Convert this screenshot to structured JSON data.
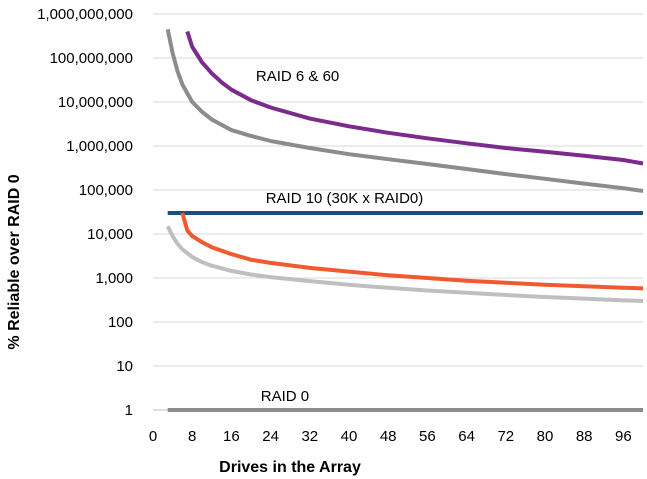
{
  "chart_data": {
    "type": "line",
    "title": "",
    "xlabel": "Drives in the Array",
    "ylabel": "% Reliable over RAID 0",
    "xlim": [
      0,
      100
    ],
    "ylim": [
      1,
      1000000000
    ],
    "yscale": "log",
    "grid": "horizontal",
    "legend": "none",
    "x_ticks": [
      "0",
      "8",
      "16",
      "24",
      "32",
      "40",
      "48",
      "56",
      "64",
      "72",
      "80",
      "88",
      "96"
    ],
    "y_ticks": [
      "1",
      "10",
      "100",
      "1,000",
      "10,000",
      "100,000",
      "1,000,000",
      "10,000,000",
      "100,000,000",
      "1,000,000,000"
    ],
    "annotations": [
      {
        "text": "RAID 6 & 60",
        "x": 21,
        "y": 30000000
      },
      {
        "text": "RAID 10 (30K x RAID0)",
        "x": 23,
        "y": 50000
      },
      {
        "text": "RAID 0",
        "x": 22,
        "y": 1.6
      }
    ],
    "series": [
      {
        "color": "#7b2a8e",
        "x": [
          7,
          8,
          9,
          10,
          12,
          14,
          16,
          20,
          24,
          32,
          40,
          48,
          56,
          64,
          72,
          80,
          88,
          96,
          100
        ],
        "y": [
          400000000,
          180000000,
          120000000,
          80000000,
          45000000,
          28000000,
          19000000,
          11000000,
          7500000,
          4200000,
          2800000,
          2000000,
          1500000,
          1150000,
          900000,
          740000,
          600000,
          480000,
          400000
        ]
      },
      {
        "color": "#8c8c8c",
        "x": [
          3,
          4,
          5,
          6,
          8,
          10,
          12,
          16,
          20,
          24,
          32,
          40,
          48,
          56,
          64,
          72,
          80,
          88,
          96,
          100
        ],
        "y": [
          450000000,
          130000000,
          50000000,
          25000000,
          10000000,
          6000000,
          4000000,
          2300000,
          1700000,
          1300000,
          900000,
          650000,
          500000,
          390000,
          300000,
          230000,
          180000,
          140000,
          110000,
          95000
        ]
      },
      {
        "color": "#1f4e79",
        "x": [
          3,
          100
        ],
        "y": [
          30000,
          30000
        ]
      },
      {
        "color": "#f05a30",
        "x": [
          6,
          7,
          8,
          10,
          12,
          16,
          20,
          24,
          32,
          40,
          48,
          56,
          64,
          72,
          80,
          88,
          96,
          100
        ],
        "y": [
          30000,
          12000,
          9000,
          6500,
          5000,
          3500,
          2600,
          2200,
          1700,
          1400,
          1150,
          1000,
          870,
          780,
          700,
          650,
          600,
          580
        ]
      },
      {
        "color": "#bfbfbf",
        "x": [
          3,
          4,
          5,
          6,
          8,
          10,
          12,
          16,
          20,
          24,
          32,
          40,
          48,
          56,
          64,
          72,
          80,
          88,
          96,
          100
        ],
        "y": [
          15000,
          9000,
          6000,
          4500,
          3000,
          2300,
          1900,
          1450,
          1200,
          1050,
          850,
          700,
          600,
          520,
          460,
          410,
          370,
          340,
          310,
          300
        ]
      },
      {
        "color": "#8c8c8c",
        "x": [
          3,
          100
        ],
        "y": [
          1,
          1
        ]
      }
    ]
  }
}
